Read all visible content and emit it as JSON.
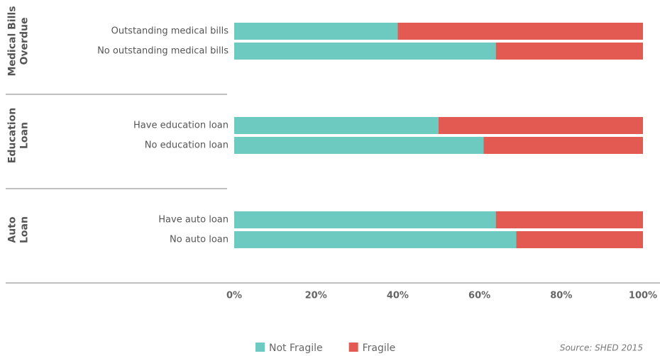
{
  "chart_data": {
    "type": "stacked-bar-horizontal",
    "groups": [
      {
        "label": [
          "Medical Bills",
          "Overdue"
        ],
        "categories": [
          "Outstanding medical bills",
          "No outstanding medical bills"
        ]
      },
      {
        "label": [
          "Education",
          "Loan"
        ],
        "categories": [
          "Have education loan",
          "No education loan"
        ]
      },
      {
        "label": [
          "Auto",
          "Loan"
        ],
        "categories": [
          "Have auto loan",
          "No auto loan"
        ]
      }
    ],
    "series": [
      {
        "name": "Not Fragile",
        "color": "#6ccac0",
        "values": [
          [
            40,
            64
          ],
          [
            50,
            61
          ],
          [
            64,
            69
          ]
        ]
      },
      {
        "name": "Fragile",
        "color": "#e25a52",
        "values": [
          [
            60,
            36
          ],
          [
            50,
            39
          ],
          [
            36,
            31
          ]
        ]
      }
    ],
    "xlim": [
      0,
      100
    ],
    "xticks": [
      {
        "value": 0,
        "label": "0%"
      },
      {
        "value": 20,
        "label": "20%"
      },
      {
        "value": 40,
        "label": "40%"
      },
      {
        "value": 60,
        "label": "60%"
      },
      {
        "value": 80,
        "label": "80%"
      },
      {
        "value": 100,
        "label": "100%"
      }
    ],
    "source": "Source: SHED 2015"
  }
}
